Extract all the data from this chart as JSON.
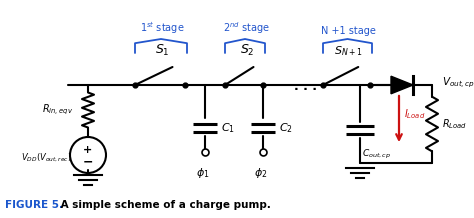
{
  "fig_width": 4.74,
  "fig_height": 2.18,
  "dpi": 100,
  "background_color": "#ffffff",
  "caption_bold": "FIGURE 5.",
  "caption_normal": " A simple scheme of a charge pump.",
  "main_color": "#000000",
  "blue_color": "#2255cc",
  "red_color": "#cc1111",
  "caption_blue": "#1a56cc"
}
